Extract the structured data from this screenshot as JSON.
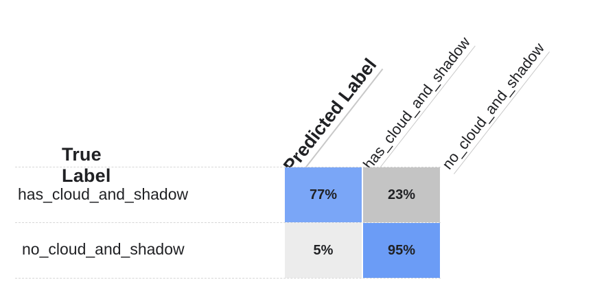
{
  "chart_data": {
    "type": "heatmap",
    "title": "",
    "row_axis_label": "True Label",
    "col_axis_label": "Predicted Label",
    "rows": [
      "has_cloud_and_shadow",
      "no_cloud_and_shadow"
    ],
    "cols": [
      "has_cloud_and_shadow",
      "no_cloud_and_shadow"
    ],
    "values": [
      [
        77,
        23
      ],
      [
        5,
        95
      ]
    ],
    "value_labels": [
      [
        "77%",
        "23%"
      ],
      [
        "5%",
        "95%"
      ]
    ],
    "cell_colors": [
      [
        "#7aa6f7",
        "#c4c4c4"
      ],
      [
        "#ececec",
        "#6b9cf6"
      ]
    ]
  }
}
